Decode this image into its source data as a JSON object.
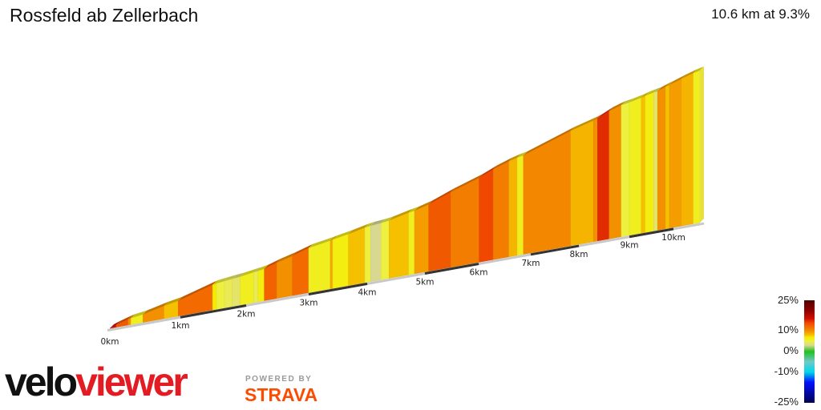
{
  "header": {
    "title": "Rossfeld ab Zellerbach",
    "summary": "10.6 km at 9.3%"
  },
  "chart_data": {
    "type": "area",
    "title": "Rossfeld ab Zellerbach",
    "distance_km": 10.6,
    "average_gradient_pct": 9.3,
    "x_ticks": [
      "0km",
      "1km",
      "2km",
      "3km",
      "4km",
      "5km",
      "6km",
      "7km",
      "8km",
      "9km",
      "10km"
    ],
    "segments": [
      {
        "from": 0,
        "to": 0.09,
        "gradient": 16
      },
      {
        "from": 0.09,
        "to": 0.26,
        "gradient": 13
      },
      {
        "from": 0.26,
        "to": 0.3,
        "gradient": 10
      },
      {
        "from": 0.3,
        "to": 0.47,
        "gradient": 6
      },
      {
        "from": 0.47,
        "to": 0.77,
        "gradient": 10
      },
      {
        "from": 0.77,
        "to": 0.97,
        "gradient": 8
      },
      {
        "from": 0.97,
        "to": 1.49,
        "gradient": 12
      },
      {
        "from": 1.49,
        "to": 1.55,
        "gradient": 7
      },
      {
        "from": 1.55,
        "to": 1.67,
        "gradient": 5
      },
      {
        "from": 1.67,
        "to": 1.79,
        "gradient": 4.5
      },
      {
        "from": 1.79,
        "to": 1.91,
        "gradient": 4
      },
      {
        "from": 1.91,
        "to": 2.12,
        "gradient": 6
      },
      {
        "from": 2.12,
        "to": 2.19,
        "gradient": 4.5
      },
      {
        "from": 2.19,
        "to": 2.29,
        "gradient": 6.5
      },
      {
        "from": 2.29,
        "to": 2.49,
        "gradient": 12.5
      },
      {
        "from": 2.49,
        "to": 2.74,
        "gradient": 10
      },
      {
        "from": 2.74,
        "to": 3.0,
        "gradient": 12
      },
      {
        "from": 3.0,
        "to": 3.37,
        "gradient": 6
      },
      {
        "from": 3.37,
        "to": 3.41,
        "gradient": 9
      },
      {
        "from": 3.41,
        "to": 3.68,
        "gradient": 6.5
      },
      {
        "from": 3.68,
        "to": 3.96,
        "gradient": 8
      },
      {
        "from": 3.96,
        "to": 4.06,
        "gradient": 5
      },
      {
        "from": 4.06,
        "to": 4.24,
        "gradient": 3
      },
      {
        "from": 4.24,
        "to": 4.38,
        "gradient": 5
      },
      {
        "from": 4.38,
        "to": 4.72,
        "gradient": 8
      },
      {
        "from": 4.72,
        "to": 4.82,
        "gradient": 6
      },
      {
        "from": 4.82,
        "to": 5.07,
        "gradient": 9.5
      },
      {
        "from": 5.07,
        "to": 5.48,
        "gradient": 13
      },
      {
        "from": 5.48,
        "to": 6.01,
        "gradient": 11
      },
      {
        "from": 6.01,
        "to": 6.28,
        "gradient": 14
      },
      {
        "from": 6.28,
        "to": 6.58,
        "gradient": 11
      },
      {
        "from": 6.58,
        "to": 6.74,
        "gradient": 8.5
      },
      {
        "from": 6.74,
        "to": 6.86,
        "gradient": 6
      },
      {
        "from": 6.86,
        "to": 7.83,
        "gradient": 10.5
      },
      {
        "from": 7.83,
        "to": 8.29,
        "gradient": 8.5
      },
      {
        "from": 8.29,
        "to": 8.37,
        "gradient": 10
      },
      {
        "from": 8.37,
        "to": 8.6,
        "gradient": 15
      },
      {
        "from": 8.6,
        "to": 8.84,
        "gradient": 10
      },
      {
        "from": 8.84,
        "to": 9.0,
        "gradient": 5
      },
      {
        "from": 9.0,
        "to": 9.27,
        "gradient": 6
      },
      {
        "from": 9.27,
        "to": 9.36,
        "gradient": 8
      },
      {
        "from": 9.36,
        "to": 9.55,
        "gradient": 6.5
      },
      {
        "from": 9.55,
        "to": 9.64,
        "gradient": 4
      },
      {
        "from": 9.64,
        "to": 9.82,
        "gradient": 10
      },
      {
        "from": 9.82,
        "to": 9.91,
        "gradient": 8
      },
      {
        "from": 9.91,
        "to": 10.18,
        "gradient": 9.5
      },
      {
        "from": 10.18,
        "to": 10.45,
        "gradient": 8.5
      },
      {
        "from": 10.45,
        "to": 10.6,
        "gradient": 6
      }
    ],
    "color_scale": [
      [
        -25,
        "#000050"
      ],
      [
        -15,
        "#0010ff"
      ],
      [
        -10,
        "#00d8e8"
      ],
      [
        -5,
        "#70c8c8"
      ],
      [
        0,
        "#20c020"
      ],
      [
        3,
        "#d8d890"
      ],
      [
        5,
        "#eef040"
      ],
      [
        7,
        "#f4ec00"
      ],
      [
        8,
        "#f5c000"
      ],
      [
        10,
        "#f39000"
      ],
      [
        12,
        "#f26a00"
      ],
      [
        14,
        "#f04800"
      ],
      [
        16,
        "#d01000"
      ],
      [
        20,
        "#900000"
      ],
      [
        25,
        "#500000"
      ]
    ]
  },
  "legend": {
    "labels": [
      "25%",
      "10%",
      "0%",
      "-10%",
      "-25%"
    ]
  },
  "branding": {
    "logo_velo": "velo",
    "logo_viewer": "viewer",
    "powered_by": "POWERED BY",
    "strava": "STRAVA"
  }
}
